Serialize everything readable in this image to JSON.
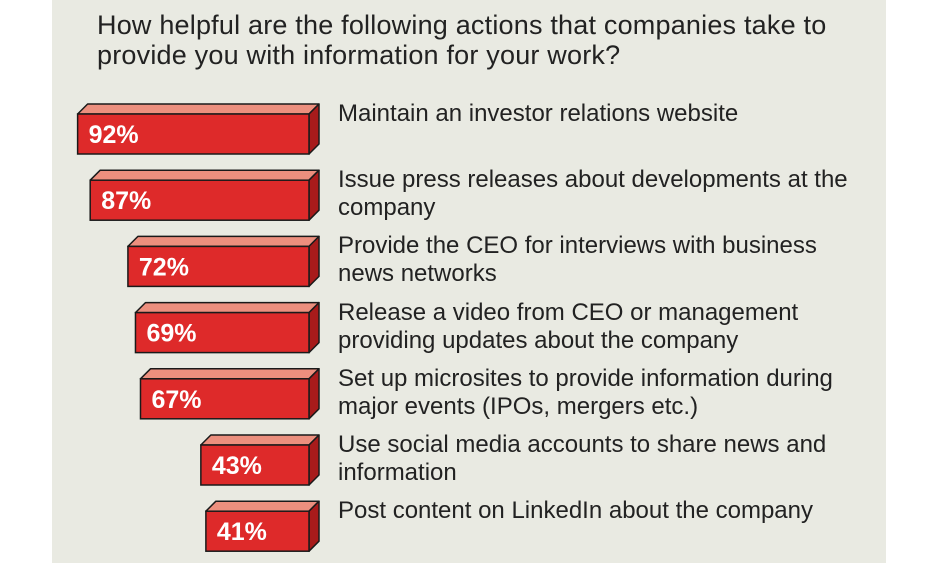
{
  "chart_data": {
    "type": "bar",
    "orientation": "horizontal",
    "title": "How helpful are the following actions that companies take to provide you with information for your work?",
    "categories": [
      "Maintain an investor relations website",
      "Issue press releases about developments at the company",
      "Provide the CEO for interviews with business news networks",
      "Release a video from CEO or management providing updates about the company",
      "Set up microsites to provide information during major events (IPOs, mergers etc.)",
      "Use social media accounts to share news and information",
      "Post content on LinkedIn about the company"
    ],
    "values": [
      92,
      87,
      72,
      69,
      67,
      43,
      41
    ],
    "value_labels": [
      "92%",
      "87%",
      "72%",
      "69%",
      "67%",
      "43%",
      "41%"
    ],
    "unit": "%",
    "xlim": [
      0,
      100
    ],
    "grid": false,
    "legend": "none"
  },
  "colors": {
    "bar_front": "#de2a2a",
    "bar_top": "#ec8f7e",
    "bar_side": "#a81b1b",
    "bar_outline": "#1a1a1a",
    "panel_background": "#e9eae2",
    "text": "#222222"
  }
}
